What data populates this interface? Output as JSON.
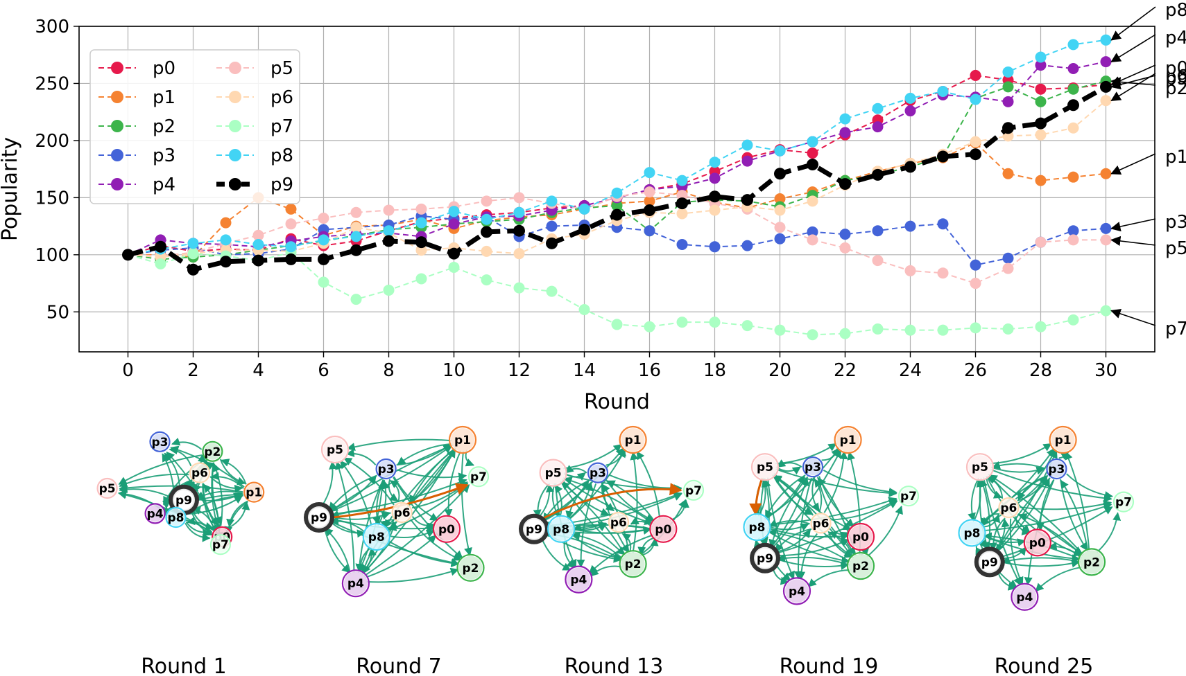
{
  "chart_data": {
    "type": "line",
    "xlabel": "Round",
    "ylabel": "Popularity",
    "xlim": [
      -1.5,
      31.5
    ],
    "ylim": [
      15,
      300
    ],
    "xticks": [
      0,
      2,
      4,
      6,
      8,
      10,
      12,
      14,
      16,
      18,
      20,
      22,
      24,
      26,
      28,
      30
    ],
    "yticks": [
      50,
      100,
      150,
      200,
      250,
      300
    ],
    "grid": true,
    "legend": "top-left, two columns",
    "x": [
      0,
      1,
      2,
      3,
      4,
      5,
      6,
      7,
      8,
      9,
      10,
      11,
      12,
      13,
      14,
      15,
      16,
      17,
      18,
      19,
      20,
      21,
      22,
      23,
      24,
      25,
      26,
      27,
      28,
      29,
      30
    ],
    "series": [
      {
        "name": "p0",
        "color": "#e6194b",
        "style": "dashed",
        "values": [
          100,
          108,
          103,
          105,
          104,
          114,
          108,
          112,
          121,
          129,
          132,
          135,
          137,
          141,
          143,
          150,
          157,
          162,
          173,
          185,
          192,
          189,
          205,
          218,
          235,
          243,
          257,
          253,
          245,
          246,
          249
        ]
      },
      {
        "name": "p1",
        "color": "#f58231",
        "style": "dashed",
        "values": [
          100,
          100,
          98,
          128,
          150,
          140,
          117,
          125,
          126,
          131,
          123,
          130,
          133,
          135,
          140,
          145,
          147,
          155,
          146,
          141,
          149,
          155,
          165,
          173,
          180,
          185,
          198,
          171,
          165,
          168,
          171
        ]
      },
      {
        "name": "p2",
        "color": "#3cb44b",
        "style": "dashed",
        "values": [
          100,
          96,
          98,
          100,
          104,
          108,
          112,
          117,
          122,
          124,
          127,
          129,
          131,
          137,
          141,
          143,
          121,
          146,
          148,
          147,
          142,
          152,
          165,
          170,
          177,
          186,
          237,
          247,
          234,
          245,
          252
        ]
      },
      {
        "name": "p3",
        "color": "#4363d8",
        "style": "dashed",
        "values": [
          100,
          104,
          106,
          100,
          101,
          105,
          122,
          124,
          126,
          134,
          131,
          133,
          116,
          125,
          126,
          124,
          121,
          109,
          107,
          108,
          114,
          120,
          118,
          121,
          125,
          127,
          91,
          97,
          111,
          121,
          123
        ]
      },
      {
        "name": "p4",
        "color": "#911eb4",
        "style": "dashed",
        "values": [
          100,
          113,
          110,
          109,
          107,
          112,
          116,
          118,
          119,
          116,
          127,
          133,
          134,
          139,
          143,
          150,
          157,
          160,
          167,
          182,
          191,
          199,
          207,
          212,
          226,
          240,
          238,
          234,
          266,
          263,
          269
        ]
      },
      {
        "name": "p5",
        "color": "#fabebe",
        "style": "dashed",
        "values": [
          100,
          99,
          102,
          110,
          117,
          127,
          132,
          137,
          139,
          140,
          142,
          147,
          150,
          145,
          140,
          151,
          155,
          152,
          145,
          140,
          124,
          113,
          106,
          95,
          86,
          84,
          75,
          88,
          111,
          113,
          113
        ]
      },
      {
        "name": "p6",
        "color": "#ffd8b1",
        "style": "dashed",
        "values": [
          100,
          98,
          101,
          104,
          104,
          103,
          110,
          124,
          119,
          104,
          106,
          103,
          101,
          114,
          118,
          130,
          137,
          136,
          139,
          142,
          139,
          147,
          161,
          173,
          180,
          188,
          199,
          204,
          205,
          211,
          235
        ]
      },
      {
        "name": "p7",
        "color": "#aaffc3",
        "style": "dashed",
        "values": [
          100,
          92,
          101,
          99,
          95,
          102,
          76,
          61,
          69,
          79,
          89,
          78,
          71,
          68,
          52,
          39,
          37,
          41,
          41,
          38,
          34,
          30,
          31,
          35,
          34,
          34,
          36,
          35,
          37,
          43,
          51
        ]
      },
      {
        "name": "p8",
        "color": "#42d4f4",
        "style": "dashed",
        "values": [
          100,
          105,
          110,
          113,
          109,
          107,
          113,
          116,
          121,
          128,
          138,
          131,
          137,
          147,
          140,
          154,
          172,
          165,
          181,
          196,
          191,
          199,
          219,
          228,
          237,
          243,
          236,
          260,
          273,
          284,
          288
        ]
      },
      {
        "name": "p9",
        "color": "#000000",
        "style": "dashed-bold",
        "values": [
          100,
          107,
          87,
          94,
          95,
          96,
          96,
          104,
          112,
          111,
          101,
          120,
          121,
          110,
          122,
          135,
          139,
          145,
          151,
          148,
          171,
          179,
          162,
          170,
          177,
          186,
          188,
          211,
          215,
          231,
          247
        ]
      }
    ],
    "annotations": [
      {
        "text": "p8",
        "target_x": 30,
        "target_y": 288
      },
      {
        "text": "p4",
        "target_x": 30,
        "target_y": 269
      },
      {
        "text": "p0",
        "target_x": 30,
        "target_y": 249
      },
      {
        "text": "p6",
        "target_x": 30,
        "target_y": 235
      },
      {
        "text": "p9",
        "target_x": 30,
        "target_y": 247
      },
      {
        "text": "p2",
        "target_x": 30,
        "target_y": 252
      },
      {
        "text": "p1",
        "target_x": 30,
        "target_y": 171
      },
      {
        "text": "p3",
        "target_x": 30,
        "target_y": 123
      },
      {
        "text": "p5",
        "target_x": 30,
        "target_y": 113
      },
      {
        "text": "p7",
        "target_x": 30,
        "target_y": 51
      }
    ]
  },
  "networks": [
    {
      "label": "Round 1",
      "nodes": [
        {
          "id": "p3",
          "nx": 0.35,
          "ny": 0.02
        },
        {
          "id": "p2",
          "nx": 0.68,
          "ny": 0.12
        },
        {
          "id": "p6",
          "nx": 0.6,
          "ny": 0.34
        },
        {
          "id": "p5",
          "nx": 0.02,
          "ny": 0.5
        },
        {
          "id": "p1",
          "nx": 0.94,
          "ny": 0.54
        },
        {
          "id": "p9",
          "nx": 0.5,
          "ny": 0.62,
          "big": true
        },
        {
          "id": "p4",
          "nx": 0.32,
          "ny": 0.76
        },
        {
          "id": "p8",
          "nx": 0.45,
          "ny": 0.8
        },
        {
          "id": "p0",
          "nx": 0.74,
          "ny": 1.0
        },
        {
          "id": "p7",
          "nx": 0.73,
          "ny": 1.08
        }
      ]
    },
    {
      "label": "Round 7",
      "nodes": [
        {
          "id": "p5",
          "nx": 0.1,
          "ny": 0.1
        },
        {
          "id": "p1",
          "nx": 0.9,
          "ny": 0.0
        },
        {
          "id": "p3",
          "nx": 0.42,
          "ny": 0.3
        },
        {
          "id": "p7",
          "nx": 1.0,
          "ny": 0.38
        },
        {
          "id": "p9",
          "nx": 0.0,
          "ny": 0.8,
          "big": true
        },
        {
          "id": "p6",
          "nx": 0.52,
          "ny": 0.75
        },
        {
          "id": "p0",
          "nx": 0.8,
          "ny": 0.92
        },
        {
          "id": "p8",
          "nx": 0.36,
          "ny": 1.0
        },
        {
          "id": "p4",
          "nx": 0.23,
          "ny": 1.48
        },
        {
          "id": "p2",
          "nx": 0.95,
          "ny": 1.32
        }
      ]
    },
    {
      "label": "Round 13",
      "nodes": [
        {
          "id": "p1",
          "nx": 0.62,
          "ny": 0.0
        },
        {
          "id": "p5",
          "nx": 0.12,
          "ny": 0.34
        },
        {
          "id": "p3",
          "nx": 0.4,
          "ny": 0.34
        },
        {
          "id": "p7",
          "nx": 1.0,
          "ny": 0.52
        },
        {
          "id": "p9",
          "nx": 0.0,
          "ny": 0.92,
          "big": true
        },
        {
          "id": "p8",
          "nx": 0.17,
          "ny": 0.92
        },
        {
          "id": "p6",
          "nx": 0.53,
          "ny": 0.85
        },
        {
          "id": "p0",
          "nx": 0.81,
          "ny": 0.92
        },
        {
          "id": "p2",
          "nx": 0.62,
          "ny": 1.28
        },
        {
          "id": "p4",
          "nx": 0.28,
          "ny": 1.44
        }
      ]
    },
    {
      "label": "Round 19",
      "nodes": [
        {
          "id": "p1",
          "nx": 0.62,
          "ny": 0.0
        },
        {
          "id": "p5",
          "nx": 0.1,
          "ny": 0.28
        },
        {
          "id": "p3",
          "nx": 0.4,
          "ny": 0.28
        },
        {
          "id": "p7",
          "nx": 1.0,
          "ny": 0.58
        },
        {
          "id": "p8",
          "nx": 0.05,
          "ny": 0.9
        },
        {
          "id": "p6",
          "nx": 0.45,
          "ny": 0.86
        },
        {
          "id": "p0",
          "nx": 0.7,
          "ny": 1.0
        },
        {
          "id": "p9",
          "nx": 0.1,
          "ny": 1.22,
          "big": true
        },
        {
          "id": "p2",
          "nx": 0.7,
          "ny": 1.3
        },
        {
          "id": "p4",
          "nx": 0.3,
          "ny": 1.56
        }
      ]
    },
    {
      "label": "Round 25",
      "nodes": [
        {
          "id": "p1",
          "nx": 0.62,
          "ny": 0.0
        },
        {
          "id": "p5",
          "nx": 0.1,
          "ny": 0.28
        },
        {
          "id": "p3",
          "nx": 0.58,
          "ny": 0.3
        },
        {
          "id": "p7",
          "nx": 1.0,
          "ny": 0.64
        },
        {
          "id": "p6",
          "nx": 0.28,
          "ny": 0.7
        },
        {
          "id": "p8",
          "nx": 0.05,
          "ny": 0.96
        },
        {
          "id": "p0",
          "nx": 0.46,
          "ny": 1.06
        },
        {
          "id": "p9",
          "nx": 0.16,
          "ny": 1.26,
          "big": true
        },
        {
          "id": "p2",
          "nx": 0.8,
          "ny": 1.26
        },
        {
          "id": "p4",
          "nx": 0.38,
          "ny": 1.62
        }
      ]
    }
  ]
}
